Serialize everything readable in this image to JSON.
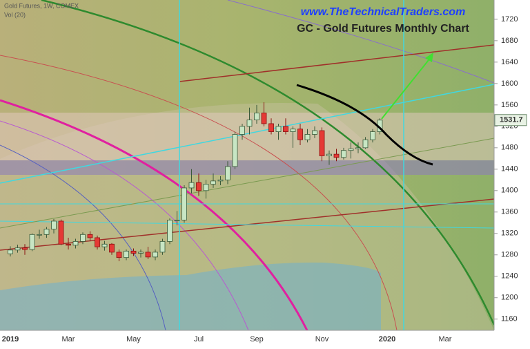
{
  "chart_data": {
    "type": "candlestick",
    "title": "GC - Gold Futures Monthly Chart",
    "subtitle": "www.TheTechnicalTraders.com",
    "symbol_label": "Gold Futures, 1W, COMEX",
    "volume_label": "Vol (20)",
    "categories": [
      "2019",
      null,
      null,
      null,
      null,
      null,
      null,
      null,
      "Mar",
      null,
      null,
      null,
      null,
      null,
      null,
      null,
      null,
      "May",
      null,
      null,
      null,
      null,
      null,
      null,
      null,
      null,
      "Jul",
      null,
      null,
      null,
      null,
      null,
      null,
      null,
      "Sep",
      null,
      null,
      null,
      null,
      null,
      null,
      null,
      null,
      "Nov",
      null,
      null,
      null,
      null,
      null,
      null,
      null,
      null,
      "2020",
      null,
      null,
      null,
      null,
      null,
      null,
      null,
      "Mar",
      null,
      null,
      null,
      null,
      null,
      null
    ],
    "open": [
      1282,
      1289,
      1293,
      1290,
      1318,
      1318,
      1328,
      1343,
      1300,
      1298,
      1305,
      1318,
      1312,
      1295,
      1300,
      1285,
      1275,
      1287,
      1283,
      1285,
      1276,
      1285,
      1305,
      1345,
      1345,
      1405,
      1415,
      1400,
      1412,
      1418,
      1420,
      1445,
      1505,
      1520,
      1532,
      1545,
      1525,
      1510,
      1520,
      1510,
      1515,
      1495,
      1505,
      1512,
      1465,
      1468,
      1462,
      1475,
      1478,
      1480,
      1495,
      1510,
      null,
      null,
      null,
      null,
      null,
      null,
      null,
      null,
      null,
      null,
      null,
      null,
      null,
      null,
      null
    ],
    "high": [
      1296,
      1299,
      1300,
      1320,
      1327,
      1332,
      1347,
      1346,
      1312,
      1310,
      1322,
      1324,
      1316,
      1306,
      1302,
      1290,
      1290,
      1292,
      1290,
      1295,
      1290,
      1310,
      1348,
      1362,
      1410,
      1440,
      1432,
      1420,
      1432,
      1427,
      1455,
      1510,
      1525,
      1555,
      1560,
      1565,
      1535,
      1525,
      1535,
      1520,
      1525,
      1515,
      1520,
      1518,
      1475,
      1478,
      1480,
      1490,
      1490,
      1500,
      1515,
      1535,
      null,
      null,
      null,
      null,
      null,
      null,
      null,
      null,
      null,
      null,
      null,
      null,
      null,
      null,
      null
    ],
    "low": [
      1277,
      1284,
      1280,
      1287,
      1310,
      1312,
      1320,
      1298,
      1290,
      1292,
      1300,
      1306,
      1290,
      1288,
      1280,
      1268,
      1270,
      1278,
      1275,
      1272,
      1270,
      1280,
      1300,
      1335,
      1340,
      1395,
      1390,
      1385,
      1405,
      1410,
      1412,
      1440,
      1495,
      1505,
      1525,
      1520,
      1505,
      1495,
      1505,
      1480,
      1485,
      1490,
      1498,
      1455,
      1448,
      1455,
      1458,
      1460,
      1470,
      1478,
      1490,
      1505,
      null,
      null,
      null,
      null,
      null,
      null,
      null,
      null,
      null,
      null,
      null,
      null,
      null,
      null,
      null
    ],
    "close": [
      1289,
      1293,
      1290,
      1318,
      1318,
      1328,
      1343,
      1300,
      1298,
      1305,
      1318,
      1312,
      1295,
      1300,
      1285,
      1275,
      1287,
      1283,
      1285,
      1276,
      1285,
      1305,
      1345,
      1345,
      1405,
      1415,
      1400,
      1412,
      1418,
      1420,
      1445,
      1505,
      1520,
      1532,
      1545,
      1525,
      1510,
      1520,
      1510,
      1515,
      1495,
      1505,
      1512,
      1465,
      1468,
      1462,
      1475,
      1478,
      1480,
      1495,
      1510,
      1531.7,
      null,
      null,
      null,
      null,
      null,
      null,
      null,
      null,
      null,
      null,
      null,
      null,
      null,
      null,
      null
    ],
    "up_color": "#c8e6c4",
    "down_color": "#e53935",
    "last_price": 1531.7,
    "ylim": [
      1139,
      1756
    ],
    "yticks": [
      1160,
      1200,
      1240,
      1280,
      1320,
      1360,
      1400,
      1440,
      1480,
      1520,
      1560,
      1600,
      1640,
      1680,
      1720
    ]
  }
}
